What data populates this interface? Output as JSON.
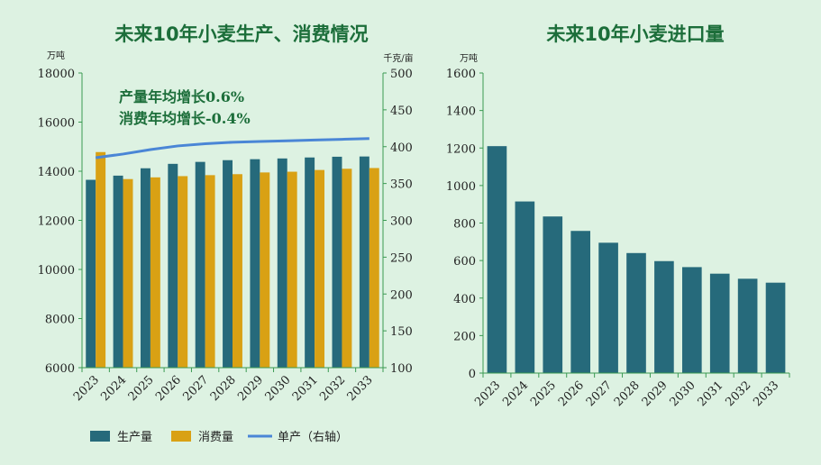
{
  "colors": {
    "production": "#266a7b",
    "consumption": "#d9a114",
    "yield": "#4a86d6",
    "axis": "#3a9a52",
    "title": "#1c6e3a"
  },
  "chart_data": [
    {
      "type": "bar",
      "title": "未来10年小麦生产、消费情况",
      "left_unit": "万吨",
      "right_unit": "千克/亩",
      "categories": [
        "2023",
        "2024",
        "2025",
        "2026",
        "2027",
        "2028",
        "2029",
        "2030",
        "2031",
        "2032",
        "2033"
      ],
      "series": [
        {
          "name": "生产量",
          "axis": "left",
          "values": [
            13650,
            13820,
            14120,
            14300,
            14380,
            14450,
            14490,
            14520,
            14560,
            14590,
            14600
          ]
        },
        {
          "name": "消费量",
          "axis": "left",
          "values": [
            14780,
            13680,
            13750,
            13800,
            13840,
            13880,
            13950,
            13980,
            14050,
            14100,
            14130
          ]
        },
        {
          "name": "单产（右轴）",
          "type": "line",
          "axis": "right",
          "values": [
            385,
            390,
            396,
            401,
            404,
            406,
            407,
            408,
            409,
            410,
            411
          ]
        }
      ],
      "ylim": [
        6000,
        18000
      ],
      "yticks": [
        "6000",
        "8000",
        "10000",
        "12000",
        "14000",
        "16000",
        "18000"
      ],
      "y2lim": [
        100,
        500
      ],
      "y2ticks": [
        "100",
        "150",
        "200",
        "250",
        "300",
        "350",
        "400",
        "450",
        "500"
      ],
      "annotations": [
        "产量年均增长0.6%",
        "消费年均增长-0.4%"
      ]
    },
    {
      "type": "bar",
      "title": "未来10年小麦进口量",
      "left_unit": "万吨",
      "categories": [
        "2023",
        "2024",
        "2025",
        "2026",
        "2027",
        "2028",
        "2029",
        "2030",
        "2031",
        "2032",
        "2033"
      ],
      "series": [
        {
          "name": "进口量",
          "values": [
            1210,
            915,
            835,
            758,
            695,
            640,
            597,
            565,
            530,
            503,
            482
          ]
        }
      ],
      "ylim": [
        0,
        1600
      ],
      "yticks": [
        "0",
        "200",
        "400",
        "600",
        "800",
        "1000",
        "1200",
        "1400",
        "1600"
      ]
    }
  ],
  "legend": [
    "生产量",
    "消费量",
    "单产（右轴）"
  ]
}
